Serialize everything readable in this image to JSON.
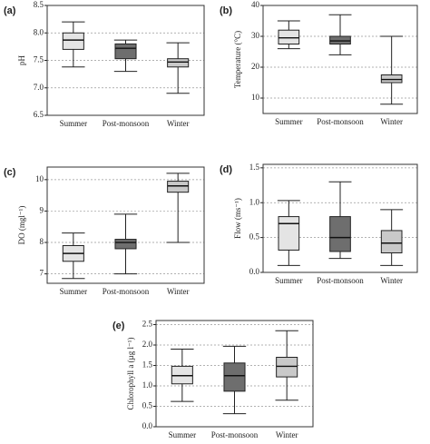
{
  "chart_data": [
    {
      "type": "box",
      "label": "(a)",
      "ylabel": "pH",
      "categories": [
        "Summer",
        "Post-monsoon",
        "Winter"
      ],
      "min": [
        7.38,
        7.3,
        6.9
      ],
      "q1": [
        7.7,
        7.53,
        7.38
      ],
      "median": [
        7.87,
        7.72,
        7.47
      ],
      "q3": [
        8.0,
        7.8,
        7.53
      ],
      "max": [
        8.2,
        7.87,
        7.82
      ],
      "colors": [
        "#e4e4e4",
        "#6e6e6e",
        "#c9c9c9"
      ],
      "ylim": [
        6.5,
        8.5
      ],
      "yticks": [
        6.5,
        {
          "value": 7,
          "label": "7.0"
        },
        7.5,
        {
          "value": 8,
          "label": "8.0"
        },
        8.5
      ],
      "grid": true
    },
    {
      "type": "box",
      "label": "(b)",
      "ylabel": "Temperature (°C)",
      "categories": [
        "Summer",
        "Post-monsoon",
        "Winter"
      ],
      "min": [
        26,
        24,
        8
      ],
      "q1": [
        27.5,
        27.5,
        15
      ],
      "median": [
        29.5,
        28.5,
        16
      ],
      "q3": [
        32,
        30,
        17.5
      ],
      "max": [
        35,
        37,
        30
      ],
      "colors": [
        "#e4e4e4",
        "#6e6e6e",
        "#c9c9c9"
      ],
      "ylim": [
        5,
        40
      ],
      "yticks": [
        10,
        20,
        30,
        40
      ],
      "grid": true
    },
    {
      "type": "box",
      "label": "(c)",
      "ylabel": "DO (mgl⁻¹)",
      "categories": [
        "Summer",
        "Post-monsoon",
        "Winter"
      ],
      "min": [
        6.85,
        7.0,
        8.0
      ],
      "q1": [
        7.4,
        7.8,
        9.6
      ],
      "median": [
        7.65,
        8.0,
        9.8
      ],
      "q3": [
        7.9,
        8.1,
        9.95
      ],
      "max": [
        8.3,
        8.9,
        10.2
      ],
      "colors": [
        "#e4e4e4",
        "#6e6e6e",
        "#c9c9c9"
      ],
      "ylim": [
        6.7,
        10.4
      ],
      "yticks": [
        7,
        8,
        9,
        10
      ],
      "grid": true
    },
    {
      "type": "box",
      "label": "(d)",
      "ylabel": "Flow (ms⁻¹)",
      "categories": [
        "Summer",
        "Post-monsoon",
        "Winter"
      ],
      "min": [
        0.1,
        0.2,
        0.1
      ],
      "q1": [
        0.32,
        0.3,
        0.28
      ],
      "median": [
        0.7,
        0.5,
        0.42
      ],
      "q3": [
        0.8,
        0.8,
        0.6
      ],
      "max": [
        1.03,
        1.3,
        0.9
      ],
      "colors": [
        "#e4e4e4",
        "#6e6e6e",
        "#c9c9c9"
      ],
      "ylim": [
        0,
        1.55
      ],
      "yticks": [
        {
          "value": 0,
          "label": "0.0"
        },
        0.5,
        {
          "value": 1,
          "label": "1.0"
        },
        1.5
      ],
      "grid": true
    },
    {
      "type": "box",
      "label": "(e)",
      "ylabel": "Chlorophyll a (µg l⁻¹)",
      "categories": [
        "Summer",
        "Post-monsoon",
        "Winter"
      ],
      "min": [
        0.62,
        0.32,
        0.65
      ],
      "q1": [
        1.05,
        0.87,
        1.22
      ],
      "median": [
        1.25,
        1.25,
        1.48
      ],
      "q3": [
        1.48,
        1.56,
        1.7
      ],
      "max": [
        1.9,
        1.97,
        2.35
      ],
      "colors": [
        "#e4e4e4",
        "#6e6e6e",
        "#c9c9c9"
      ],
      "ylim": [
        0,
        2.6
      ],
      "yticks": [
        {
          "value": 0,
          "label": "0.0"
        },
        0.5,
        {
          "value": 1,
          "label": "1.0"
        },
        1.5,
        {
          "value": 2,
          "label": "2.0"
        },
        2.5
      ],
      "grid": true
    }
  ]
}
